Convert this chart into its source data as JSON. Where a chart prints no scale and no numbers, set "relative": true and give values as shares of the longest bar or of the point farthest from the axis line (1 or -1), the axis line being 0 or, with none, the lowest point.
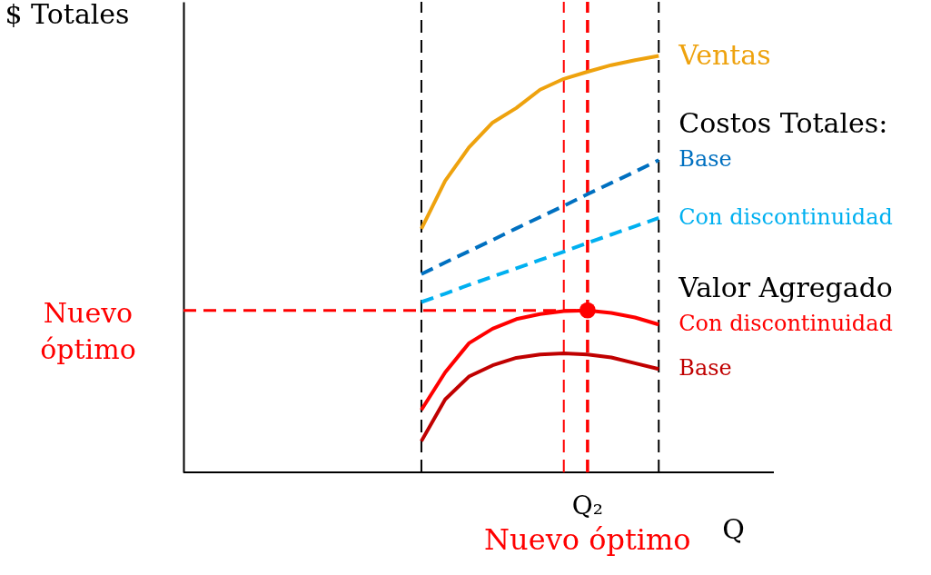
{
  "chart_data": {
    "type": "line",
    "relative": true,
    "xlabel": "Q",
    "tick_labels": false,
    "grid": false,
    "categories": [
      null,
      null,
      null,
      null,
      null,
      null,
      null,
      null,
      null,
      null,
      null
    ],
    "annotations": [
      "Costos Totales:",
      "Valor Agregado",
      "Q₂",
      "Nuevo óptimo",
      "$ Totales"
    ],
    "series": [
      {
        "name": "Ventas",
        "color": "#eea20e",
        "line_style": "solid",
        "values": [
          0.585,
          0.7,
          0.78,
          0.84,
          0.875,
          0.919,
          0.945,
          0.962,
          0.978,
          0.99,
          1
        ]
      },
      {
        "name": "Base",
        "color": "#0070c0",
        "line_style": "dashed",
        "values": [
          0.476,
          0.504,
          0.531,
          0.558,
          0.586,
          0.613,
          0.64,
          0.668,
          0.695,
          0.722,
          0.75
        ]
      },
      {
        "name": "Con discontinuidad",
        "color": "#00b0f0",
        "line_style": "dashed",
        "values": [
          0.409,
          0.429,
          0.45,
          0.47,
          0.49,
          0.51,
          0.53,
          0.551,
          0.571,
          0.591,
          0.611
        ]
      },
      {
        "name": "Con discontinuidad",
        "color": "#ff0000",
        "line_style": "solid",
        "values": [
          0.15,
          0.24,
          0.31,
          0.345,
          0.368,
          0.38,
          0.387,
          0.389,
          0.383,
          0.372,
          0.355
        ]
      },
      {
        "name": "Base",
        "color": "#c00000",
        "line_style": "solid",
        "values": [
          0.075,
          0.175,
          0.23,
          0.257,
          0.275,
          0.283,
          0.286,
          0.283,
          0.276,
          0.262,
          0.248
        ]
      }
    ],
    "ref_lines": [
      {
        "axis": "y",
        "value": 0.389,
        "color": "#ff0000",
        "line_style": "dashed",
        "label": "Nuevo óptimo"
      }
    ]
  }
}
